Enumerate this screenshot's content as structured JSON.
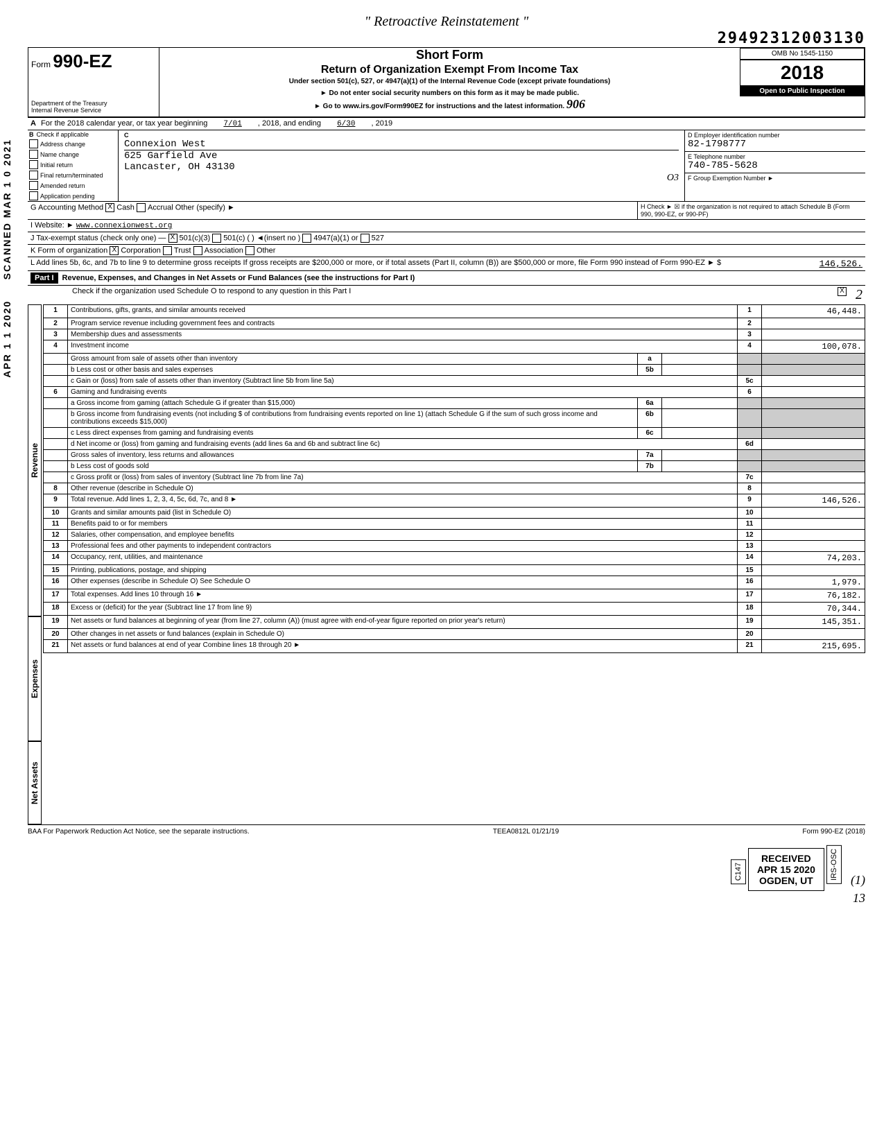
{
  "handwritten_title": "\" Retroactive Reinstatement \"",
  "barcode_number": "29492312003130",
  "form": {
    "prefix": "Form",
    "number": "990-EZ",
    "short_form": "Short Form",
    "return_title": "Return of Organization Exempt From Income Tax",
    "subtitle1": "Under section 501(c), 527, or 4947(a)(1) of the Internal Revenue Code (except private foundations)",
    "warn": "► Do not enter social security numbers on this form as it may be made public.",
    "goto": "► Go to www.irs.gov/Form990EZ for instructions and the latest information.",
    "omb": "OMB No 1545-1150",
    "year": "2018",
    "open_public": "Open to Public Inspection",
    "dept": "Department of the Treasury\nInternal Revenue Service",
    "hand_note": "906"
  },
  "line_a": {
    "text": "For the 2018 calendar year, or tax year beginning",
    "begin": "7/01",
    "mid": ", 2018, and ending",
    "end": "6/30",
    "tail": ", 2019"
  },
  "box_b": {
    "label": "Check if applicable",
    "items": [
      "Address change",
      "Name change",
      "Initial return",
      "Final return/terminated",
      "Amended return",
      "Application pending"
    ]
  },
  "box_c": {
    "label": "C",
    "name": "Connexion West",
    "addr1": "625 Garfield Ave",
    "addr2": "Lancaster, OH 43130",
    "hand": "O3"
  },
  "box_d": {
    "label": "D  Employer identification number",
    "value": "82-1798777"
  },
  "box_e": {
    "label": "E  Telephone number",
    "value": "740-785-5628"
  },
  "box_f": {
    "label": "F  Group Exemption Number ►",
    "value": ""
  },
  "line_g": {
    "label": "G  Accounting Method",
    "cash_checked": true,
    "opts": {
      "cash": "Cash",
      "accrual": "Accrual",
      "other": "Other (specify) ►"
    }
  },
  "line_h": "H  Check ► ☒ if the organization is not required to attach Schedule B (Form 990, 990-EZ, or 990-PF)",
  "line_i": {
    "label": "I  Website: ►",
    "value": "www.connexionwest.org"
  },
  "line_j": {
    "label": "J  Tax-exempt status (check only one) —",
    "c3_checked": true,
    "opts": [
      "501(c)(3)",
      "501(c) (    ) ◄(insert no )",
      "4947(a)(1) or",
      "527"
    ]
  },
  "line_k": {
    "label": "K  Form of organization",
    "corp_checked": true,
    "opts": [
      "Corporation",
      "Trust",
      "Association",
      "Other"
    ]
  },
  "line_l": {
    "text": "L  Add lines 5b, 6c, and 7b to line 9 to determine gross receipts  If gross receipts are $200,000 or more, or if total assets (Part II, column (B)) are $500,000 or more, file Form 990 instead of Form 990-EZ",
    "arrow": "► $",
    "value": "146,526."
  },
  "part1": {
    "header": "Part I",
    "title": "Revenue, Expenses, and Changes in Net Assets or Fund Balances (see the instructions for Part I)",
    "checknote": "Check if the organization used Schedule O to respond to any question in this Part I",
    "checked": true
  },
  "sections": {
    "revenue": "Revenue",
    "expenses": "Expenses",
    "netassets": "Net Assets"
  },
  "lines": [
    {
      "n": "1",
      "d": "Contributions, gifts, grants, and similar amounts received",
      "v": "46,448."
    },
    {
      "n": "2",
      "d": "Program service revenue including government fees and contracts",
      "v": ""
    },
    {
      "n": "3",
      "d": "Membership dues and assessments",
      "v": ""
    },
    {
      "n": "4",
      "d": "Investment income",
      "v": "100,078."
    },
    {
      "n": "5a",
      "d": "Gross amount from sale of assets other than inventory",
      "sub": "a",
      "v": ""
    },
    {
      "n": "5b",
      "d": "b Less  cost or other basis and sales expenses",
      "sub": "5b",
      "v": ""
    },
    {
      "n": "5c",
      "d": "c Gain or (loss) from sale of assets other than inventory (Subtract line 5b from line 5a)",
      "v": ""
    },
    {
      "n": "6",
      "d": "Gaming and fundraising events",
      "v": ""
    },
    {
      "n": "6a",
      "d": "a Gross income from gaming (attach Schedule G if greater than $15,000)",
      "sub": "6a",
      "v": ""
    },
    {
      "n": "6b",
      "d": "b Gross income from fundraising events (not including $                of contributions from fundraising events reported on line 1) (attach Schedule G if the sum of such gross income and contributions exceeds $15,000)",
      "sub": "6b",
      "v": ""
    },
    {
      "n": "6c",
      "d": "c Less  direct expenses from gaming and fundraising events",
      "sub": "6c",
      "v": ""
    },
    {
      "n": "6d",
      "d": "d Net income or (loss) from gaming and fundraising events (add lines 6a and 6b and subtract line 6c)",
      "v": ""
    },
    {
      "n": "7a",
      "d": "Gross sales of inventory, less returns and allowances",
      "sub": "7a",
      "v": ""
    },
    {
      "n": "7b",
      "d": "b Less  cost of goods sold",
      "sub": "7b",
      "v": ""
    },
    {
      "n": "7c",
      "d": "c Gross profit or (loss) from sales of inventory (Subtract line 7b from line 7a)",
      "v": ""
    },
    {
      "n": "8",
      "d": "Other revenue (describe in Schedule O)",
      "v": ""
    },
    {
      "n": "9",
      "d": "Total revenue. Add lines 1, 2, 3, 4, 5c, 6d, 7c, and 8                                                          ►",
      "v": "146,526."
    },
    {
      "n": "10",
      "d": "Grants and similar amounts paid (list in Schedule O)",
      "v": ""
    },
    {
      "n": "11",
      "d": "Benefits paid to or for members",
      "v": ""
    },
    {
      "n": "12",
      "d": "Salaries, other compensation, and employee benefits",
      "v": ""
    },
    {
      "n": "13",
      "d": "Professional fees and other payments to independent contractors",
      "v": ""
    },
    {
      "n": "14",
      "d": "Occupancy, rent, utilities, and maintenance",
      "v": "74,203."
    },
    {
      "n": "15",
      "d": "Printing, publications, postage, and shipping",
      "v": ""
    },
    {
      "n": "16",
      "d": "Other expenses (describe in Schedule O)                                          See Schedule O",
      "v": "1,979."
    },
    {
      "n": "17",
      "d": "Total expenses. Add lines 10 through 16                                                                        ►",
      "v": "76,182."
    },
    {
      "n": "18",
      "d": "Excess or (deficit) for the year (Subtract line 17 from line 9)",
      "v": "70,344."
    },
    {
      "n": "19",
      "d": "Net assets or fund balances at beginning of year (from line 27, column (A)) (must agree with end-of-year figure reported on prior year's return)",
      "v": "145,351."
    },
    {
      "n": "20",
      "d": "Other changes in net assets or fund balances (explain in Schedule O)",
      "v": ""
    },
    {
      "n": "21",
      "d": "Net assets or fund balances at end of year  Combine lines 18 through 20                                       ►",
      "v": "215,695."
    }
  ],
  "footer": {
    "baa": "BAA For Paperwork Reduction Act Notice, see the separate instructions.",
    "code": "TEEA0812L  01/21/19",
    "formref": "Form 990-EZ (2018)"
  },
  "stamps": {
    "received": "RECEIVED",
    "date": "APR 15 2020",
    "ogden": "OGDEN, UT",
    "c147": "C147",
    "irs": "IRS-OSC",
    "side1": "APR 1 1 2020",
    "side2": "SCANNED MAR 1 0 2021",
    "hand_right": "2",
    "hand_br1": "(1)",
    "hand_br2": "13"
  }
}
